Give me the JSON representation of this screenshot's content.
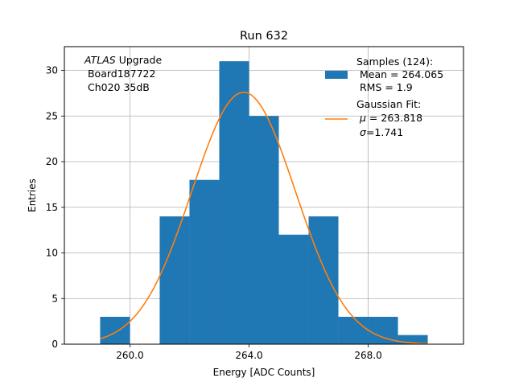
{
  "chart_data": {
    "type": "bar",
    "title": "Run 632",
    "xlabel": "Energy [ADC Counts]",
    "ylabel": "Entries",
    "xlim": [
      257.8,
      271.2
    ],
    "ylim": [
      0,
      32.6
    ],
    "grid": true,
    "legend_position": "top-right",
    "x_ticks": [
      260,
      264,
      268
    ],
    "x_tick_labels": [
      "260.0",
      "264.0",
      "268.0"
    ],
    "y_ticks": [
      0,
      5,
      10,
      15,
      20,
      25,
      30
    ],
    "y_tick_labels": [
      "0",
      "5",
      "10",
      "15",
      "20",
      "25",
      "30"
    ],
    "bin_edges": [
      259,
      260,
      261,
      262,
      263,
      264,
      265,
      266,
      267,
      268,
      269,
      270
    ],
    "series": [
      {
        "kind": "histogram",
        "values": [
          3,
          0,
          14,
          18,
          31,
          25,
          12,
          14,
          3,
          3,
          1
        ],
        "color": "#1f77b4"
      },
      {
        "kind": "gaussian_fit",
        "mu": 263.818,
        "sigma": 1.741,
        "amplitude": 27.6,
        "x_range": [
          259,
          270
        ],
        "color": "#ff7f0e"
      }
    ],
    "annotation": {
      "atlas": "ATLAS",
      "upgrade": " Upgrade",
      "board": " Board187722",
      "channel": " Ch020 35dB"
    },
    "legend": {
      "hist": [
        "Samples (124):",
        " Mean = 264.065",
        " RMS = 1.9"
      ],
      "fit_title": "Gaussian Fit:",
      "fit_mu_symbol": "μ",
      "fit_mu_value": " = 263.818",
      "fit_sigma_symbol": "σ",
      "fit_sigma_value": "=1.741"
    }
  }
}
